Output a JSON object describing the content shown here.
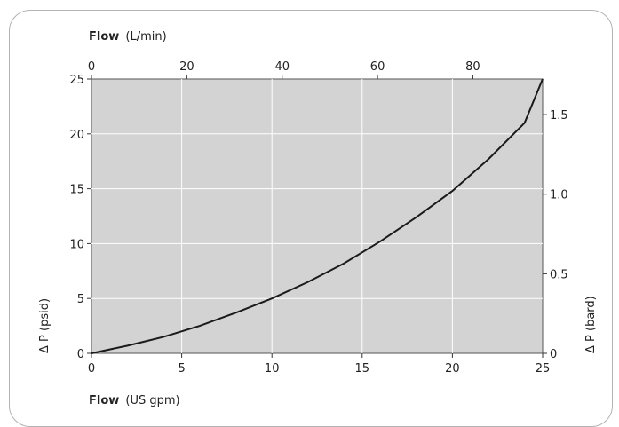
{
  "chart_data": {
    "type": "line",
    "top_axis_label": {
      "main": "Flow",
      "unit": "(L/min)"
    },
    "bottom_axis_label": {
      "main": "Flow",
      "unit": "(US gpm)"
    },
    "left_axis_label": "Δ P (psid)",
    "right_axis_label": "Δ P (bard)",
    "x_range": [
      0,
      25
    ],
    "y_range": [
      0,
      25
    ],
    "x_ticks": [
      0,
      5,
      10,
      15,
      20,
      25
    ],
    "y_ticks": [
      0,
      5,
      10,
      15,
      20,
      25
    ],
    "top_ticks": [
      0,
      20,
      40,
      60,
      80
    ],
    "right_ticks": [
      "0",
      "0.5",
      "1.0",
      "1.5"
    ],
    "grid": true,
    "colors": {
      "plot_bg": "#d3d3d3",
      "grid": "#ffffff",
      "line": "#1a1a1a",
      "border": "#b3b3b3"
    },
    "series": [
      {
        "x": [
          0,
          2,
          4,
          6,
          8,
          10,
          12,
          14,
          16,
          18,
          20,
          22,
          24,
          25
        ],
        "y": [
          0,
          0.7,
          1.5,
          2.5,
          3.7,
          5.0,
          6.5,
          8.2,
          10.2,
          12.4,
          14.8,
          17.7,
          21.0,
          25.0
        ]
      }
    ]
  }
}
